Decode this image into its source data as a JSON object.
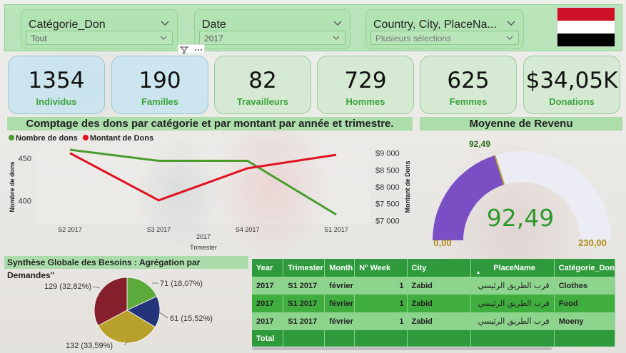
{
  "slicers": [
    {
      "title": "Catégorie_Don",
      "value": "Tout"
    },
    {
      "title": "Date",
      "value": "2017"
    },
    {
      "title": "Country, City, PlaceNa...",
      "value": "Plusieurs sélections"
    }
  ],
  "flag": {
    "colors": [
      "#ce1126",
      "#ffffff",
      "#000000"
    ]
  },
  "kpis": [
    {
      "value": "1354",
      "label": "Individus"
    },
    {
      "value": "190",
      "label": "Familles"
    },
    {
      "value": "82",
      "label": "Travailleurs"
    },
    {
      "value": "729",
      "label": "Hommes"
    },
    {
      "value": "625",
      "label": "Femmes"
    },
    {
      "value": "$34,05K",
      "label": "Donations"
    }
  ],
  "line_section": {
    "title": "Comptage des dons par catégorie et par montant par année et trimestre."
  },
  "gauge_section": {
    "title": "Moyenne de Revenu"
  },
  "pie_section": {
    "title": "Synthèse Globale des Besoins : Agrégation par Demandes\""
  },
  "chart_data": [
    {
      "type": "line",
      "legend": [
        "Nombre de dons",
        "Montant de Dons"
      ],
      "x": [
        "S2 2017",
        "S3 2017",
        "S4 2017",
        "S1 2017"
      ],
      "xlabel_line1": "2017",
      "xlabel": "Trimester",
      "ylabel_left": "Nombre de dons",
      "ylabel_right": "Montant de Dons",
      "y_left_ticks": [
        "450",
        "400"
      ],
      "y_right_ticks": [
        "$9 000",
        "$8 500",
        "$8 000",
        "$7 500",
        "$7 000"
      ],
      "ylim_left": [
        373,
        460
      ],
      "ylim_right": [
        6900,
        9100
      ],
      "series": [
        {
          "name": "Nombre de dons",
          "axis": "left",
          "color": "#4a9c2e",
          "values": [
            460,
            447,
            447,
            384
          ]
        },
        {
          "name": "Montant de Dons",
          "axis": "right",
          "color": "#e0101e",
          "values": [
            9000,
            7600,
            8550,
            8950
          ]
        }
      ]
    },
    {
      "type": "gauge",
      "value": 92.49,
      "min": 0,
      "max": 230,
      "value_label": "92,49",
      "top_label": "92,49",
      "min_label": "0,00",
      "max_label": "230,00",
      "fill_color": "#7a4fc4",
      "track_color": "#ececf4"
    },
    {
      "type": "pie",
      "slices": [
        {
          "label": "71 (18,07%)",
          "value": 71,
          "color": "#5caa3c"
        },
        {
          "label": "61 (15,52%)",
          "value": 61,
          "color": "#23347a"
        },
        {
          "label": "132 (33,59%)",
          "value": 132,
          "color": "#b8a12a"
        },
        {
          "label": "129 (32,82%)",
          "value": 129,
          "color": "#851f2c"
        }
      ]
    }
  ],
  "table": {
    "headers": [
      "Year",
      "Trimester",
      "Month",
      "N° Week",
      "City",
      "PlaceName",
      "Catégorie_Don"
    ],
    "rows": [
      [
        "2017",
        "S1 2017",
        "février",
        "1",
        "Zabid",
        "قرب الطريق الرئيسي",
        "Clothes"
      ],
      [
        "2017",
        "S1 2017",
        "février",
        "1",
        "Zabid",
        "قرب الطريق الرئيسي",
        "Food"
      ],
      [
        "2017",
        "S1 2017",
        "février",
        "1",
        "Zabid",
        "قرب الطريق الرئيسي",
        "Moeny"
      ]
    ],
    "total_label": "Total"
  }
}
